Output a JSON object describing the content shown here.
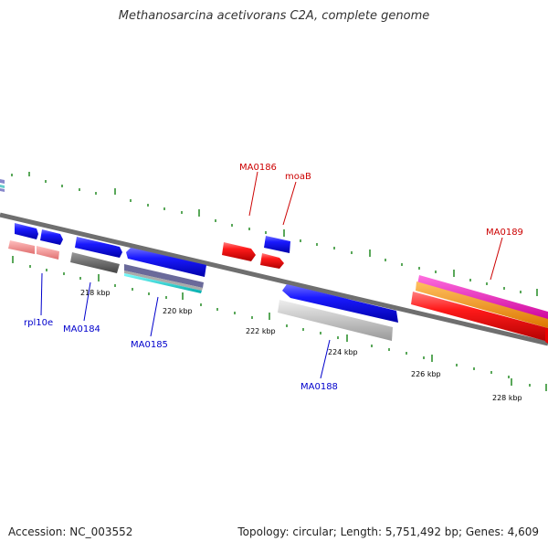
{
  "title": "Methanosarcina acetivorans C2A, complete genome",
  "footer": {
    "accession": "Accession: NC_003552",
    "summary": "Topology: circular; Length: 5,751,492 bp; Genes: 4,609"
  },
  "colors": {
    "backbone": "#777777",
    "tick": "#228B22",
    "gene_blue": "#0000ee",
    "gene_red": "#ee0000",
    "label_blue": "#0000cc",
    "label_red": "#cc0000"
  },
  "scale_labels": [
    "218 kbp",
    "220 kbp",
    "222 kbp",
    "224 kbp",
    "226 kbp",
    "228 kbp"
  ],
  "gene_labels": {
    "rpl10e": "rpl10e",
    "ma0184": "MA0184",
    "ma0185": "MA0185",
    "ma0186": "MA0186",
    "moab": "moaB",
    "ma0188": "MA0188",
    "ma0189": "MA0189"
  }
}
